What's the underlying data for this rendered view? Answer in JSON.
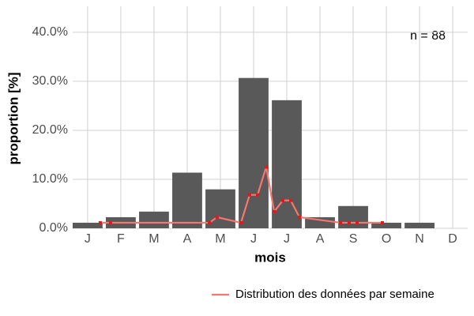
{
  "chart_data": {
    "type": "bar",
    "annotation": "n = 88",
    "x_label": "mois",
    "y_label": "proportion [%]",
    "xlim": [
      0.55,
      12.45
    ],
    "xticks": [
      {
        "value": 1,
        "label": "J"
      },
      {
        "value": 2,
        "label": "F"
      },
      {
        "value": 3,
        "label": "M"
      },
      {
        "value": 4,
        "label": "A"
      },
      {
        "value": 5,
        "label": "M"
      },
      {
        "value": 6,
        "label": "J"
      },
      {
        "value": 7,
        "label": "J"
      },
      {
        "value": 8,
        "label": "A"
      },
      {
        "value": 9,
        "label": "S"
      },
      {
        "value": 10,
        "label": "O"
      },
      {
        "value": 11,
        "label": "N"
      },
      {
        "value": 12,
        "label": "D"
      }
    ],
    "ylim": [
      0,
      45.3
    ],
    "yticks": [
      {
        "value": 0,
        "label": "0.0%"
      },
      {
        "value": 10,
        "label": "10.0%"
      },
      {
        "value": 20,
        "label": "20.0%"
      },
      {
        "value": 30,
        "label": "30.0%"
      },
      {
        "value": 40,
        "label": "40.0%"
      }
    ],
    "grid": true,
    "legend_position": "bottom",
    "series": [
      {
        "type": "bar",
        "color": "#595959",
        "x": [
          1,
          2,
          3,
          4,
          5,
          6,
          7,
          8,
          9,
          10,
          11,
          12
        ],
        "values": [
          1.14,
          2.27,
          3.41,
          11.36,
          7.95,
          30.68,
          26.14,
          2.27,
          4.55,
          1.14,
          1.14,
          0
        ]
      },
      {
        "type": "line",
        "name": "Distribution des données par semaine",
        "color": "#F8766D",
        "marker_color": "#e8151b",
        "x": [
          1.38,
          1.69,
          4.67,
          4.9,
          5.62,
          5.88,
          6.12,
          6.38,
          6.62,
          6.88,
          7.12,
          7.38,
          8.62,
          8.88,
          9.12,
          9.88
        ],
        "values": [
          1.14,
          1.14,
          1.14,
          2.27,
          1.14,
          6.82,
          6.82,
          12.5,
          3.41,
          5.68,
          5.68,
          2.27,
          1.14,
          1.14,
          1.14,
          1.14
        ]
      }
    ]
  }
}
